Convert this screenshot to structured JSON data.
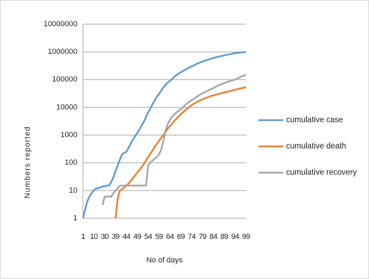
{
  "chart_data": {
    "type": "line",
    "x_label": "No of days",
    "y_label": "Numbers reported",
    "categories": [
      "1",
      null,
      null,
      null,
      null,
      "10",
      null,
      null,
      null,
      null,
      "30",
      null,
      null,
      null,
      null,
      "39",
      null,
      null,
      null,
      null,
      "44",
      null,
      null,
      null,
      null,
      "49",
      null,
      null,
      null,
      null,
      "54",
      null,
      null,
      null,
      null,
      "59",
      null,
      null,
      null,
      null,
      "64",
      null,
      null,
      null,
      null,
      "69",
      null,
      null,
      null,
      null,
      "74",
      null,
      null,
      null,
      null,
      "79",
      null,
      null,
      null,
      null,
      "84",
      null,
      null,
      null,
      null,
      "89",
      null,
      null,
      null,
      null,
      "94",
      null,
      null,
      null,
      null,
      "99"
    ],
    "ylim": [
      1,
      10000000
    ],
    "yticks": [
      1,
      10,
      100,
      1000,
      10000,
      100000,
      1000000,
      10000000
    ],
    "log_y": true,
    "grid": true,
    "legend": "right",
    "series": [
      {
        "name": "cumulative case",
        "color": "#5b9bd5",
        "values": [
          1,
          2,
          4,
          6,
          8,
          10,
          12,
          12,
          13,
          14,
          14,
          15,
          15,
          20,
          30,
          50,
          80,
          130,
          200,
          230,
          250,
          350,
          500,
          700,
          900,
          1200,
          1600,
          2200,
          3000,
          4500,
          6500,
          9000,
          13000,
          18000,
          24000,
          30000,
          40000,
          52000,
          65000,
          78000,
          90000,
          105000,
          125000,
          145000,
          165000,
          185000,
          205000,
          225000,
          250000,
          275000,
          300000,
          330000,
          360000,
          390000,
          420000,
          450000,
          480000,
          510000,
          540000,
          570000,
          600000,
          630000,
          660000,
          690000,
          720000,
          750000,
          780000,
          810000,
          840000,
          870000,
          900000,
          920000,
          940000,
          960000,
          980000,
          1000000
        ]
      },
      {
        "name": "cumulative death",
        "color": "#ed7d31",
        "values": [
          null,
          null,
          null,
          null,
          null,
          null,
          null,
          null,
          null,
          null,
          null,
          null,
          null,
          null,
          null,
          1,
          5,
          10,
          11,
          13,
          15,
          18,
          22,
          28,
          35,
          45,
          55,
          70,
          90,
          120,
          160,
          210,
          280,
          370,
          480,
          620,
          800,
          1000,
          1300,
          1700,
          2100,
          2600,
          3200,
          3900,
          4700,
          5600,
          6600,
          7700,
          9000,
          10500,
          12000,
          13500,
          15000,
          16500,
          18000,
          19500,
          21000,
          22500,
          24000,
          25500,
          27000,
          28500,
          30000,
          31500,
          33000,
          34500,
          36000,
          37500,
          39000,
          41000,
          43000,
          45000,
          47000,
          49000,
          51000,
          54000
        ]
      },
      {
        "name": "cumulative recovery",
        "color": "#a5a5a5",
        "values": [
          null,
          null,
          null,
          null,
          null,
          null,
          null,
          null,
          null,
          3,
          6,
          6,
          6,
          6,
          8,
          10,
          12,
          15,
          15,
          15,
          15,
          15,
          15,
          15,
          15,
          15,
          15,
          15,
          15,
          15,
          80,
          100,
          120,
          140,
          160,
          200,
          300,
          600,
          1500,
          2500,
          3500,
          4500,
          5500,
          6500,
          7500,
          8500,
          10000,
          12000,
          14000,
          16000,
          18000,
          20000,
          23000,
          26000,
          29000,
          32000,
          35000,
          38000,
          42000,
          46000,
          50000,
          55000,
          60000,
          65000,
          70000,
          75000,
          80000,
          85000,
          90000,
          95000,
          100000,
          110000,
          120000,
          130000,
          140000,
          150000
        ]
      }
    ]
  }
}
